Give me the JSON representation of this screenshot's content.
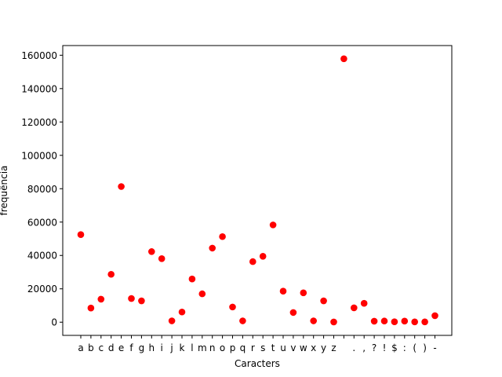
{
  "chart_data": {
    "type": "scatter",
    "title": "",
    "xlabel": "Caracters",
    "ylabel": "frequência",
    "categories": [
      "a",
      "b",
      "c",
      "d",
      "e",
      "f",
      "g",
      "h",
      "i",
      "j",
      "k",
      "l",
      "m",
      "n",
      "o",
      "p",
      "q",
      "r",
      "s",
      "t",
      "u",
      "v",
      "w",
      "x",
      "y",
      "z",
      " ",
      ".",
      ",",
      "?",
      "!",
      "$",
      ":",
      "(",
      ")",
      "-"
    ],
    "values": [
      52500,
      8500,
      13800,
      28700,
      81300,
      14200,
      12800,
      42300,
      38100,
      800,
      6100,
      25900,
      17000,
      44400,
      51300,
      9100,
      800,
      36300,
      39500,
      58300,
      18600,
      5800,
      17600,
      800,
      12800,
      150,
      157900,
      8600,
      11300,
      600,
      700,
      250,
      650,
      200,
      200,
      3900
    ],
    "ylim": [
      -7900,
      165800
    ],
    "yticks": [
      0,
      20000,
      40000,
      60000,
      80000,
      100000,
      120000,
      140000,
      160000
    ],
    "marker_color": "#ff0000",
    "grid": false,
    "legend": "none"
  }
}
